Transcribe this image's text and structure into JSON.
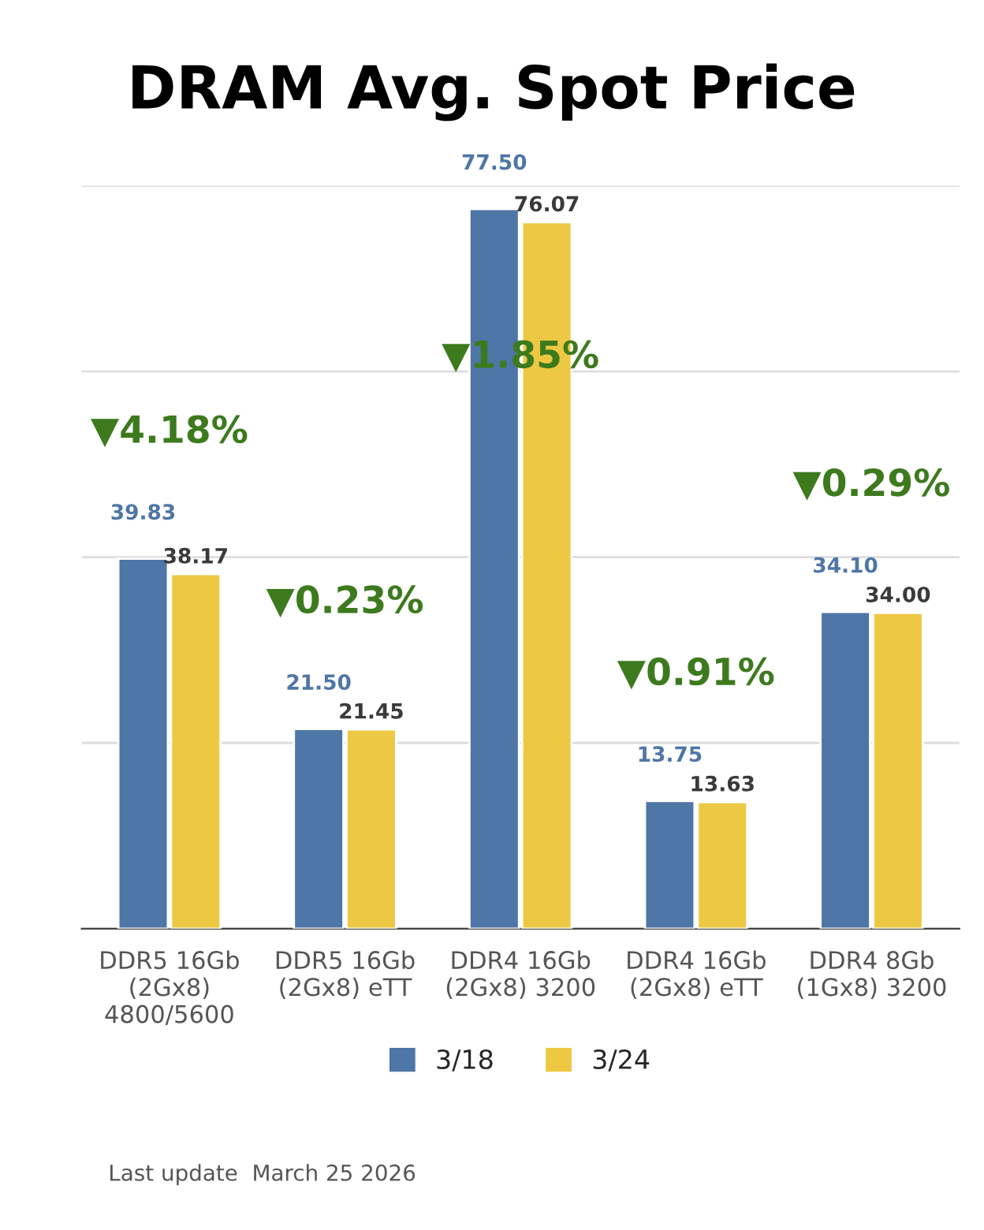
{
  "chart_data": {
    "type": "bar",
    "title": "DRAM Avg. Spot Price",
    "categories": [
      "DDR5 16Gb\n(2Gx8)\n4800/5600",
      "DDR5 16Gb\n(2Gx8) eTT",
      "DDR4 16Gb\n(2Gx8) 3200",
      "DDR4 16Gb\n(2Gx8) eTT",
      "DDR4 8Gb\n(1Gx8) 3200"
    ],
    "series": [
      {
        "name": "3/18",
        "color": "#4e76a6",
        "values": [
          39.83,
          21.5,
          77.5,
          13.75,
          34.1
        ],
        "value_labels": [
          "39.83",
          "21.50",
          "77.50",
          "13.75",
          "34.10"
        ]
      },
      {
        "name": "3/24",
        "color": "#edc843",
        "values": [
          38.17,
          21.45,
          76.07,
          13.63,
          34.0
        ],
        "value_labels": [
          "38.17",
          "21.45",
          "76.07",
          "13.63",
          "34.00"
        ]
      }
    ],
    "ylim": [
      0,
      80
    ],
    "yticks": [
      {
        "value": 0,
        "label": null
      },
      {
        "value": 20,
        "label": null
      },
      {
        "value": 40,
        "label": null
      },
      {
        "value": 60,
        "label": null
      },
      {
        "value": 80,
        "label": null
      }
    ],
    "tick_labels": "x",
    "grid": "y",
    "legend": "bottom",
    "annotations": [
      "▼4.18%",
      "▼0.23%",
      "▼1.85%",
      "▼0.91%",
      "▼0.29%",
      "Last update  March 25 2026"
    ]
  }
}
